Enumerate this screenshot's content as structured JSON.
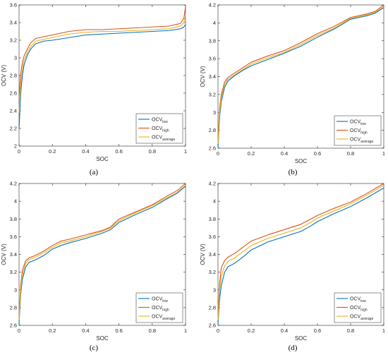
{
  "colors": {
    "low": "#0072BD",
    "high": "#D95319",
    "average": "#EDB120",
    "axis": "#262626",
    "legend_border": "#262626"
  },
  "chart_data": [
    {
      "type": "line",
      "caption": "(a)",
      "xlabel": "SOC",
      "ylabel": "OCV (V)",
      "xlim": [
        0,
        1
      ],
      "ylim": [
        2,
        3.6
      ],
      "xticks": [
        0,
        0.2,
        0.4,
        0.6,
        0.8,
        1
      ],
      "yticks": [
        2,
        2.2,
        2.4,
        2.6,
        2.8,
        3,
        3.2,
        3.4,
        3.6
      ],
      "grid": false,
      "legend_position": "bottom-right",
      "x": [
        0,
        0.01,
        0.02,
        0.03,
        0.05,
        0.07,
        0.1,
        0.15,
        0.2,
        0.3,
        0.4,
        0.5,
        0.6,
        0.7,
        0.8,
        0.9,
        0.97,
        0.99,
        1
      ],
      "series": [
        {
          "name": "OCV",
          "subscript": "low",
          "key": "low",
          "values": [
            2.2,
            2.6,
            2.8,
            2.92,
            3.03,
            3.1,
            3.16,
            3.19,
            3.2,
            3.23,
            3.26,
            3.27,
            3.28,
            3.29,
            3.3,
            3.31,
            3.33,
            3.35,
            3.38
          ]
        },
        {
          "name": "OCV",
          "subscript": "high",
          "key": "high",
          "values": [
            2.55,
            2.82,
            2.95,
            3.02,
            3.1,
            3.17,
            3.22,
            3.24,
            3.26,
            3.3,
            3.32,
            3.32,
            3.33,
            3.34,
            3.35,
            3.36,
            3.39,
            3.45,
            3.58
          ]
        },
        {
          "name": "OCV",
          "subscript": "average",
          "key": "average",
          "values": [
            2.38,
            2.7,
            2.87,
            2.97,
            3.06,
            3.13,
            3.19,
            3.21,
            3.23,
            3.27,
            3.29,
            3.3,
            3.3,
            3.31,
            3.32,
            3.33,
            3.36,
            3.4,
            3.48
          ]
        }
      ]
    },
    {
      "type": "line",
      "caption": "(b)",
      "xlabel": "SOC",
      "ylabel": "OCV (V)",
      "xlim": [
        0,
        1
      ],
      "ylim": [
        2.6,
        4.2
      ],
      "xticks": [
        0,
        0.2,
        0.4,
        0.6,
        0.8,
        1
      ],
      "yticks": [
        2.6,
        2.8,
        3,
        3.2,
        3.4,
        3.6,
        3.8,
        4,
        4.2
      ],
      "grid": false,
      "legend_position": "bottom-right",
      "x": [
        0,
        0.01,
        0.02,
        0.04,
        0.06,
        0.1,
        0.15,
        0.2,
        0.3,
        0.4,
        0.5,
        0.6,
        0.7,
        0.8,
        0.9,
        0.95,
        1
      ],
      "series": [
        {
          "name": "OCV",
          "subscript": "low",
          "key": "low",
          "values": [
            2.6,
            2.95,
            3.12,
            3.28,
            3.35,
            3.41,
            3.47,
            3.52,
            3.59,
            3.66,
            3.74,
            3.84,
            3.93,
            4.04,
            4.08,
            4.11,
            4.17
          ]
        },
        {
          "name": "OCV",
          "subscript": "high",
          "key": "high",
          "values": [
            2.7,
            3.05,
            3.2,
            3.34,
            3.39,
            3.44,
            3.5,
            3.56,
            3.63,
            3.69,
            3.78,
            3.88,
            3.96,
            4.06,
            4.1,
            4.13,
            4.2
          ]
        },
        {
          "name": "OCV",
          "subscript": "average",
          "key": "average",
          "values": [
            2.65,
            3.0,
            3.16,
            3.31,
            3.37,
            3.42,
            3.48,
            3.54,
            3.61,
            3.67,
            3.76,
            3.86,
            3.94,
            4.05,
            4.09,
            4.12,
            4.18
          ]
        }
      ]
    },
    {
      "type": "line",
      "caption": "(c)",
      "xlabel": "SOC",
      "ylabel": "OCV (V)",
      "xlim": [
        0,
        1
      ],
      "ylim": [
        2.6,
        4.2
      ],
      "xticks": [
        0,
        0.2,
        0.4,
        0.6,
        0.8,
        1
      ],
      "yticks": [
        2.6,
        2.8,
        3,
        3.2,
        3.4,
        3.6,
        3.8,
        4,
        4.2
      ],
      "grid": false,
      "legend_position": "bottom-right",
      "x": [
        0,
        0.01,
        0.02,
        0.04,
        0.06,
        0.1,
        0.15,
        0.2,
        0.25,
        0.3,
        0.4,
        0.5,
        0.55,
        0.6,
        0.7,
        0.8,
        0.9,
        0.95,
        1
      ],
      "series": [
        {
          "name": "OCV",
          "subscript": "low",
          "key": "low",
          "values": [
            2.62,
            2.95,
            3.12,
            3.26,
            3.31,
            3.34,
            3.39,
            3.46,
            3.5,
            3.53,
            3.58,
            3.64,
            3.68,
            3.76,
            3.85,
            3.93,
            4.04,
            4.09,
            4.17
          ]
        },
        {
          "name": "OCV",
          "subscript": "high",
          "key": "high",
          "values": [
            2.7,
            3.05,
            3.22,
            3.33,
            3.36,
            3.39,
            3.44,
            3.5,
            3.55,
            3.57,
            3.62,
            3.67,
            3.71,
            3.8,
            3.88,
            3.96,
            4.07,
            4.12,
            4.2
          ]
        },
        {
          "name": "OCV",
          "subscript": "average",
          "key": "average",
          "values": [
            2.66,
            3.0,
            3.17,
            3.3,
            3.34,
            3.37,
            3.42,
            3.48,
            3.53,
            3.55,
            3.6,
            3.66,
            3.7,
            3.78,
            3.87,
            3.95,
            4.05,
            4.1,
            4.18
          ]
        }
      ]
    },
    {
      "type": "line",
      "caption": "(d)",
      "xlabel": "SOC",
      "ylabel": "OCV (V)",
      "xlim": [
        0,
        1
      ],
      "ylim": [
        2.6,
        4.2
      ],
      "xticks": [
        0,
        0.2,
        0.4,
        0.6,
        0.8,
        1
      ],
      "yticks": [
        2.6,
        2.8,
        3,
        3.2,
        3.4,
        3.6,
        3.8,
        4,
        4.2
      ],
      "grid": false,
      "legend_position": "bottom-right",
      "x": [
        0,
        0.01,
        0.02,
        0.04,
        0.06,
        0.1,
        0.15,
        0.2,
        0.3,
        0.4,
        0.5,
        0.55,
        0.6,
        0.7,
        0.8,
        0.9,
        1
      ],
      "series": [
        {
          "name": "OCV",
          "subscript": "low",
          "key": "low",
          "values": [
            2.62,
            2.9,
            3.05,
            3.2,
            3.26,
            3.3,
            3.37,
            3.45,
            3.54,
            3.6,
            3.66,
            3.71,
            3.77,
            3.86,
            3.94,
            4.04,
            4.15
          ]
        },
        {
          "name": "OCV",
          "subscript": "high",
          "key": "high",
          "values": [
            2.7,
            3.08,
            3.25,
            3.33,
            3.37,
            3.41,
            3.48,
            3.55,
            3.62,
            3.68,
            3.74,
            3.79,
            3.84,
            3.92,
            3.99,
            4.09,
            4.2
          ]
        },
        {
          "name": "OCV",
          "subscript": "average",
          "key": "average",
          "values": [
            2.66,
            3.0,
            3.15,
            3.27,
            3.32,
            3.36,
            3.43,
            3.5,
            3.58,
            3.64,
            3.7,
            3.75,
            3.81,
            3.89,
            3.97,
            4.07,
            4.18
          ]
        }
      ]
    }
  ]
}
